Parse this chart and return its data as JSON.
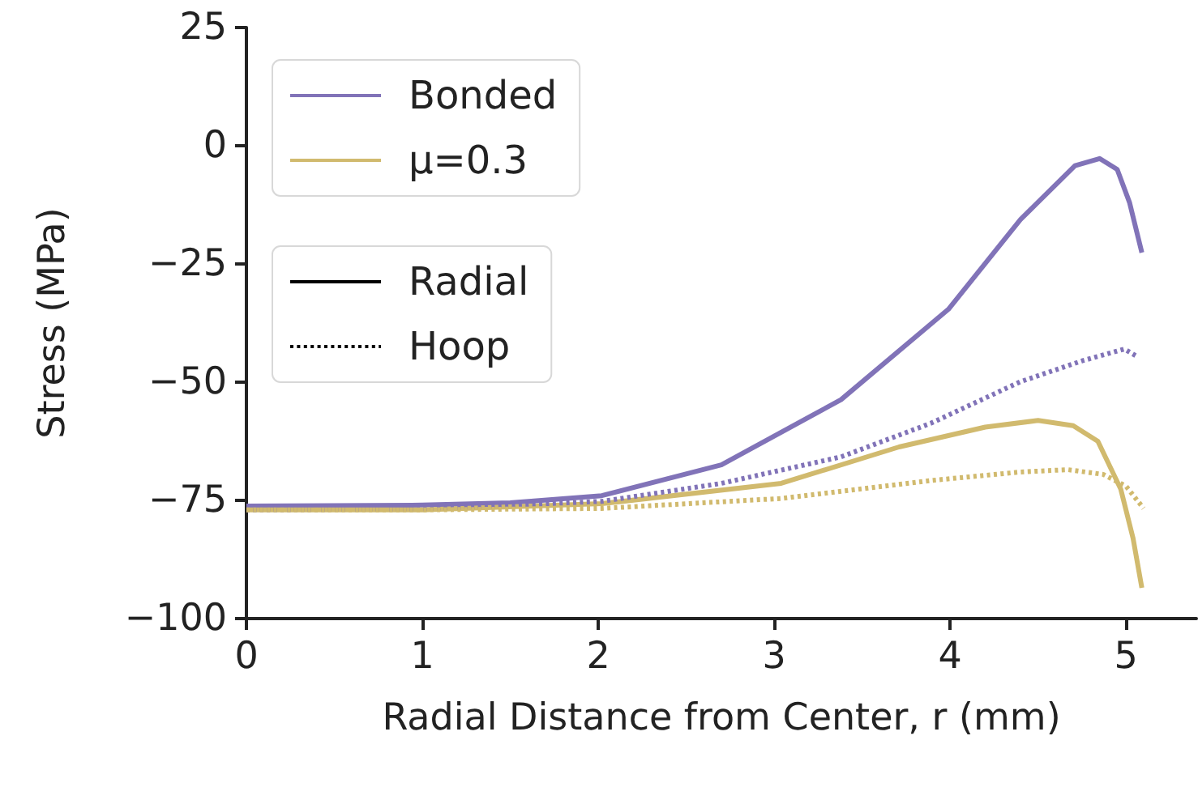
{
  "chart_data": {
    "type": "line",
    "xlabel": "Radial Distance from Center, r (mm)",
    "ylabel": "Stress (MPa)",
    "xlim": [
      0,
      5.4
    ],
    "xticks": [
      0,
      1,
      2,
      3,
      4,
      5
    ],
    "ylim": [
      -100,
      25
    ],
    "yticks": [
      -100,
      -75,
      -50,
      -25,
      0,
      25
    ],
    "grid": false,
    "legend": "top left",
    "marker": "none",
    "series": [
      {
        "name": "Bonded",
        "color": "#8173b8",
        "line_style": "solid",
        "x": [
          0,
          1,
          1.5,
          2.02,
          2.7,
          3.38,
          3.99,
          4.4,
          4.71,
          4.85,
          4.95,
          5.02,
          5.09
        ],
        "values": [
          -76.2,
          -76,
          -75.5,
          -74,
          -67.5,
          -53.7,
          -34.6,
          -15.6,
          -4.2,
          -2.7,
          -5,
          -12,
          -22.6
        ]
      },
      {
        "name": "μ=0.3",
        "color": "#d1ba6e",
        "line_style": "solid",
        "x": [
          0,
          1,
          2.02,
          3.04,
          3.71,
          4.2,
          4.5,
          4.7,
          4.84,
          4.97,
          5.04,
          5.09
        ],
        "values": [
          -77,
          -77,
          -75.7,
          -71.4,
          -63.7,
          -59.5,
          -58.1,
          -59.2,
          -62.5,
          -72.6,
          -83,
          -93.5
        ]
      },
      {
        "color": "#8173b8",
        "line_style": "dotted",
        "x": [
          0,
          1,
          2.02,
          2.7,
          3.38,
          3.89,
          4.4,
          4.75,
          4.99,
          5.06
        ],
        "values": [
          -77,
          -76.8,
          -75.2,
          -71.4,
          -65.8,
          -58.7,
          -49.9,
          -45.5,
          -43,
          -44.5
        ]
      },
      {
        "color": "#d1ba6e",
        "line_style": "dotted",
        "x": [
          0,
          1,
          2.02,
          3.04,
          3.89,
          4.4,
          4.67,
          4.87,
          5,
          5.1
        ],
        "values": [
          -77,
          -77,
          -76.7,
          -74.6,
          -70.8,
          -69,
          -68.5,
          -69.5,
          -72,
          -76.7
        ]
      },
      {
        "name": "Radial",
        "color": "#000000",
        "line_style": "solid"
      },
      {
        "name": "Hoop",
        "color": "#000000",
        "line_style": "dotted"
      }
    ]
  }
}
